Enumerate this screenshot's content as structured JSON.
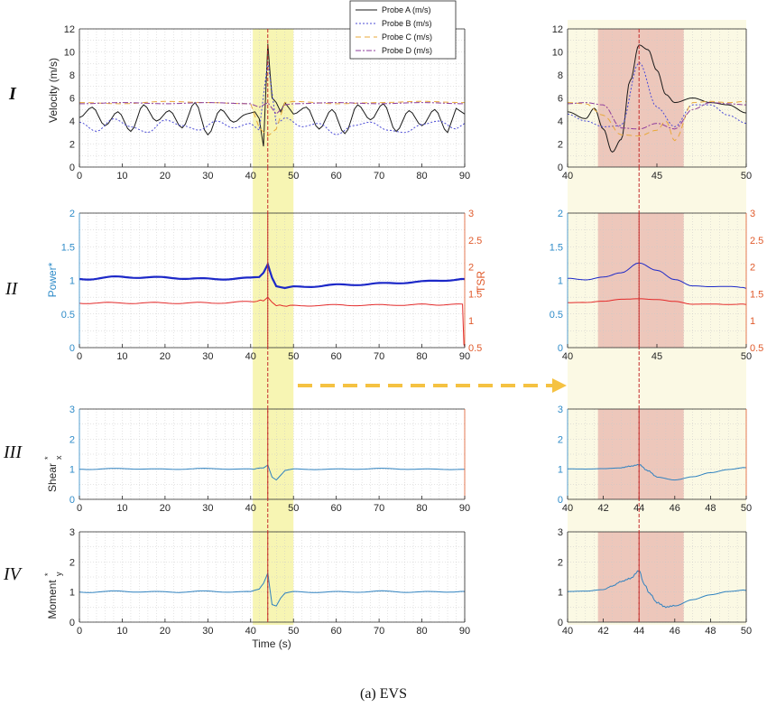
{
  "figure": {
    "caption": "(a) EVS",
    "row_labels": [
      "I",
      "II",
      "III",
      "IV"
    ],
    "event_time": 44,
    "highlight_window_main": [
      40.5,
      50
    ],
    "highlight_window_zoom": [
      41.7,
      46.5
    ],
    "colors": {
      "highlight_yellow": "#f6f3a6",
      "zoom_bg": "#fbf9e4",
      "zoom_highlight": "#e8b6ad",
      "event_line": "#c22a2a",
      "arrow": "#f5c242",
      "power_axis": "#2e8bc8",
      "tsr_axis": "#e05a2b"
    }
  },
  "chart_data": [
    {
      "id": "I-main",
      "type": "line",
      "ylabel": "Velocity (m/s)",
      "xlim": [
        0,
        90
      ],
      "ylim": [
        0,
        12
      ],
      "xticks": [
        0,
        10,
        20,
        30,
        40,
        50,
        60,
        70,
        80,
        90
      ],
      "yticks": [
        0,
        2,
        4,
        6,
        8,
        10,
        12
      ],
      "legend": {
        "placement": "top-right",
        "entries": [
          "Probe A (m/s)",
          "Probe B (m/s)",
          "Probe C (m/s)",
          "Probe D (m/s)"
        ]
      },
      "series": [
        {
          "name": "Probe A (m/s)",
          "color": "#1a1a1a",
          "dash": "",
          "x": [
            0,
            3,
            6,
            9,
            12,
            15,
            18,
            21,
            24,
            27,
            30,
            33,
            36,
            39,
            41,
            42,
            43,
            44,
            45,
            46,
            47,
            48,
            50,
            53,
            56,
            59,
            62,
            65,
            68,
            71,
            74,
            77,
            80,
            83,
            86,
            88,
            90
          ],
          "y": [
            4.3,
            5.2,
            3.6,
            4.8,
            3.1,
            5.4,
            4.0,
            4.9,
            3.4,
            5.6,
            2.8,
            5.0,
            3.9,
            4.6,
            4.8,
            4.2,
            1.8,
            10.7,
            6.0,
            5.6,
            4.8,
            5.6,
            4.6,
            5.2,
            3.3,
            5.0,
            2.9,
            5.4,
            4.1,
            5.5,
            3.1,
            4.9,
            3.6,
            5.0,
            3.0,
            5.1,
            4.6
          ]
        },
        {
          "name": "Probe B (m/s)",
          "color": "#4b4bd6",
          "dash": "2,2",
          "x": [
            0,
            4,
            8,
            12,
            16,
            20,
            24,
            28,
            32,
            36,
            40,
            42,
            44,
            46,
            48,
            52,
            56,
            60,
            64,
            68,
            72,
            76,
            80,
            84,
            88,
            90
          ],
          "y": [
            3.9,
            3.1,
            4.2,
            3.5,
            3.0,
            4.1,
            3.6,
            3.2,
            4.0,
            3.4,
            3.8,
            3.2,
            9.2,
            3.7,
            4.3,
            3.5,
            3.8,
            2.8,
            3.6,
            3.9,
            3.2,
            3.0,
            3.7,
            4.0,
            3.3,
            3.8
          ]
        },
        {
          "name": "Probe C (m/s)",
          "color": "#e8a83a",
          "dash": "6,4",
          "x": [
            0,
            10,
            20,
            30,
            40,
            42,
            44,
            46,
            48,
            50,
            60,
            70,
            80,
            90
          ],
          "y": [
            5.6,
            5.5,
            5.7,
            5.6,
            5.5,
            3.4,
            2.7,
            3.3,
            5.6,
            5.7,
            5.5,
            5.6,
            5.7,
            5.6
          ]
        },
        {
          "name": "Probe D (m/s)",
          "color": "#8d3c9b",
          "dash": "6,2,2,2",
          "x": [
            0,
            10,
            20,
            30,
            40,
            42,
            44,
            46,
            48,
            50,
            60,
            70,
            80,
            90
          ],
          "y": [
            5.5,
            5.6,
            5.5,
            5.6,
            5.5,
            5.2,
            5.6,
            4.6,
            5.4,
            5.5,
            5.6,
            5.5,
            5.6,
            5.5
          ]
        }
      ]
    },
    {
      "id": "I-zoom",
      "type": "line",
      "xlim": [
        40,
        50
      ],
      "ylim": [
        0,
        12
      ],
      "xticks": [
        40,
        45,
        50
      ],
      "yticks": [
        0,
        2,
        4,
        6,
        8,
        10,
        12
      ],
      "series": [
        {
          "name": "Probe A (m/s)",
          "color": "#1a1a1a",
          "dash": "",
          "x": [
            40,
            41,
            41.5,
            42,
            42.5,
            43,
            43.5,
            44,
            44.5,
            45,
            45.5,
            46,
            47,
            48,
            49,
            50
          ],
          "y": [
            4.8,
            4.2,
            5.1,
            3.3,
            1.3,
            2.4,
            7.5,
            10.6,
            10.2,
            8.4,
            6.3,
            5.6,
            6.0,
            5.6,
            5.4,
            4.7
          ]
        },
        {
          "name": "Probe B (m/s)",
          "color": "#4b4bd6",
          "dash": "2,2",
          "x": [
            40,
            41,
            42,
            43,
            44,
            45,
            46,
            47,
            48,
            49,
            50
          ],
          "y": [
            4.6,
            4.0,
            3.5,
            3.6,
            9.1,
            5.2,
            3.5,
            5.4,
            5.4,
            4.5,
            3.8
          ]
        },
        {
          "name": "Probe C (m/s)",
          "color": "#e8a83a",
          "dash": "6,4",
          "x": [
            40,
            41,
            42,
            43,
            44,
            45,
            45.5,
            46,
            47,
            48,
            49,
            50
          ],
          "y": [
            5.6,
            5.5,
            4.5,
            2.8,
            2.7,
            3.2,
            4.0,
            2.3,
            5.6,
            5.7,
            5.6,
            5.7
          ]
        },
        {
          "name": "Probe D (m/s)",
          "color": "#8d3c9b",
          "dash": "6,2,2,2",
          "x": [
            40,
            41,
            42,
            43,
            44,
            45,
            46,
            47,
            48,
            49,
            50
          ],
          "y": [
            5.5,
            5.6,
            5.4,
            3.4,
            3.3,
            3.8,
            3.3,
            5.0,
            5.6,
            5.5,
            5.4
          ]
        }
      ]
    },
    {
      "id": "II-main",
      "type": "line",
      "ylabel": "Power*",
      "y2label": "TSR",
      "xlim": [
        0,
        90
      ],
      "ylim": [
        0,
        2
      ],
      "y2lim": [
        0.5,
        3
      ],
      "xticks": [
        0,
        10,
        20,
        30,
        40,
        50,
        60,
        70,
        80,
        90
      ],
      "yticks": [
        0,
        0.5,
        1,
        1.5,
        2
      ],
      "y2ticks": [
        0.5,
        1,
        1.5,
        2,
        2.5,
        3
      ],
      "series": [
        {
          "name": "Power*",
          "axis": "left",
          "color": "#1c28c8",
          "x": [
            0,
            10,
            20,
            30,
            40,
            42,
            43,
            44,
            45,
            46,
            48,
            50,
            60,
            70,
            80,
            90
          ],
          "y": [
            1.02,
            1.05,
            1.04,
            1.02,
            1.03,
            1.05,
            1.12,
            1.25,
            1.05,
            0.92,
            0.88,
            0.9,
            0.93,
            0.95,
            0.98,
            1.02
          ]
        },
        {
          "name": "TSR",
          "axis": "right",
          "color": "#e32a2a",
          "x": [
            0,
            10,
            20,
            30,
            40,
            43,
            44,
            45,
            46,
            50,
            60,
            70,
            80,
            89.5,
            89.8,
            90
          ],
          "y": [
            1.33,
            1.33,
            1.33,
            1.33,
            1.35,
            1.38,
            1.45,
            1.35,
            1.28,
            1.28,
            1.29,
            1.29,
            1.3,
            1.3,
            0.55,
            0.55
          ]
        }
      ]
    },
    {
      "id": "II-zoom",
      "type": "line",
      "xlim": [
        40,
        50
      ],
      "ylim": [
        0,
        2
      ],
      "y2lim": [
        0.5,
        3
      ],
      "xticks": [
        40,
        45,
        50
      ],
      "yticks": [
        0,
        0.5,
        1,
        1.5,
        2
      ],
      "y2ticks": [
        0.5,
        1,
        1.5,
        2,
        2.5,
        3
      ],
      "series": [
        {
          "name": "Power*",
          "axis": "left",
          "color": "#1c28c8",
          "x": [
            40,
            41,
            42,
            43,
            44,
            45,
            46,
            47,
            48,
            49,
            50
          ],
          "y": [
            1.02,
            1.0,
            1.05,
            1.12,
            1.27,
            1.16,
            1.02,
            0.92,
            0.9,
            0.9,
            0.88
          ]
        },
        {
          "name": "TSR",
          "axis": "right",
          "color": "#e32a2a",
          "x": [
            40,
            41,
            42,
            43,
            44,
            45,
            46,
            47,
            48,
            49,
            50
          ],
          "y": [
            1.33,
            1.34,
            1.37,
            1.41,
            1.42,
            1.4,
            1.36,
            1.3,
            1.3,
            1.29,
            1.3
          ]
        }
      ]
    },
    {
      "id": "III-main",
      "type": "line",
      "ylabel": "Shear",
      "xlim": [
        0,
        90
      ],
      "ylim": [
        0,
        3
      ],
      "xticks": [
        0,
        10,
        20,
        30,
        40,
        50,
        60,
        70,
        80,
        90
      ],
      "yticks": [
        0,
        1,
        2,
        3
      ],
      "series": [
        {
          "name": "Shear",
          "color": "#2f82c0",
          "x": [
            0,
            10,
            20,
            30,
            40,
            43,
            44,
            45,
            46,
            47,
            48,
            50,
            60,
            70,
            80,
            90
          ],
          "y": [
            1.0,
            1.02,
            1.0,
            1.02,
            1.0,
            1.05,
            1.15,
            0.75,
            0.65,
            0.8,
            0.95,
            1.0,
            1.0,
            1.02,
            1.0,
            1.0
          ]
        }
      ]
    },
    {
      "id": "III-zoom",
      "type": "line",
      "xlim": [
        40,
        50
      ],
      "ylim": [
        0,
        3
      ],
      "xticks": [
        40,
        42,
        44,
        46,
        48,
        50
      ],
      "yticks": [
        0,
        1,
        2,
        3
      ],
      "series": [
        {
          "name": "Shear",
          "color": "#2f82c0",
          "x": [
            40,
            41,
            42,
            43,
            43.5,
            44,
            44.5,
            45,
            46,
            47,
            48,
            49,
            50
          ],
          "y": [
            1.0,
            1.0,
            1.02,
            1.05,
            1.1,
            1.15,
            0.95,
            0.75,
            0.65,
            0.75,
            0.88,
            0.98,
            1.05
          ]
        }
      ]
    },
    {
      "id": "IV-main",
      "type": "line",
      "ylabel": "Moment",
      "xlim": [
        0,
        90
      ],
      "ylim": [
        0,
        3
      ],
      "xticks": [
        0,
        10,
        20,
        30,
        40,
        50,
        60,
        70,
        80,
        90
      ],
      "yticks": [
        0,
        1,
        2,
        3
      ],
      "series": [
        {
          "name": "Moment",
          "color": "#2f82c0",
          "x": [
            0,
            10,
            20,
            30,
            40,
            42,
            43,
            44,
            45,
            46,
            47,
            48,
            50,
            60,
            70,
            80,
            90
          ],
          "y": [
            1.0,
            1.02,
            1.0,
            1.02,
            1.0,
            1.1,
            1.3,
            1.65,
            0.6,
            0.55,
            0.8,
            0.95,
            1.0,
            1.0,
            1.02,
            1.0,
            1.02
          ]
        }
      ]
    },
    {
      "id": "IV-zoom",
      "type": "line",
      "xlim": [
        40,
        50
      ],
      "ylim": [
        0,
        3
      ],
      "xticks": [
        40,
        42,
        44,
        46,
        48,
        50
      ],
      "yticks": [
        0,
        1,
        2,
        3
      ],
      "series": [
        {
          "name": "Moment",
          "color": "#2f82c0",
          "x": [
            40,
            41,
            42,
            42.5,
            43,
            43.5,
            44,
            44.3,
            44.6,
            45,
            45.5,
            46,
            47,
            48,
            49,
            50
          ],
          "y": [
            1.0,
            1.02,
            1.08,
            1.2,
            1.35,
            1.45,
            1.7,
            1.25,
            0.95,
            0.65,
            0.5,
            0.55,
            0.75,
            0.9,
            1.0,
            1.05
          ]
        }
      ]
    }
  ],
  "labels": {
    "xlabel_bottom": "Time (s)",
    "shear_sub": "x",
    "moment_sub": "y",
    "star": "*"
  }
}
